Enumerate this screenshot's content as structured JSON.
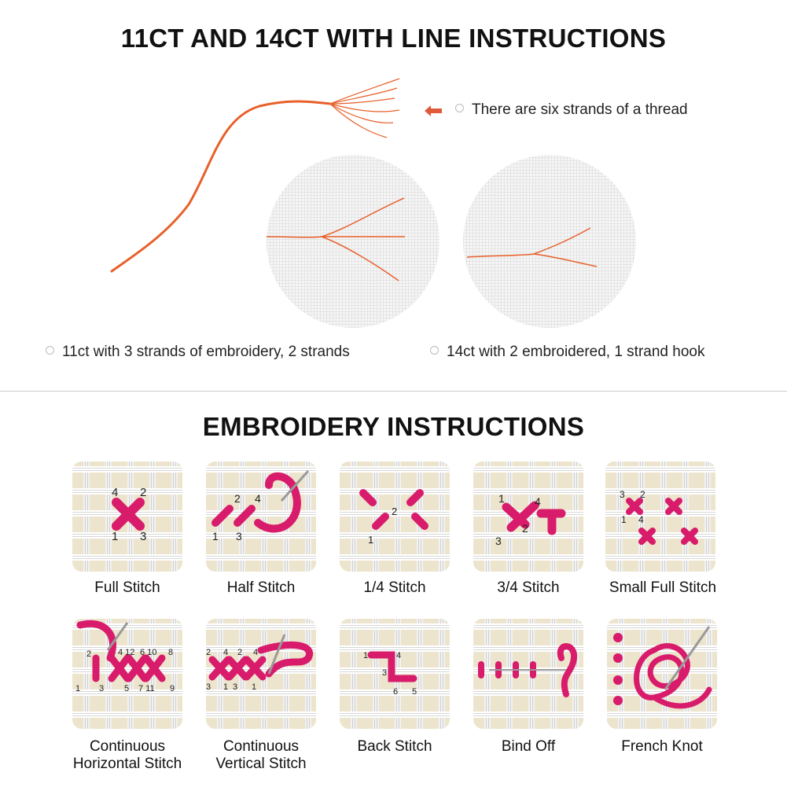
{
  "section1": {
    "title": "11CT AND 14CT WITH LINE INSTRUCTIONS",
    "thread_note": "There are six strands of a thread",
    "caption_11ct": "11ct with 3 strands of embroidery, 2 strands",
    "caption_14ct": "14ct with 2 embroidered, 1 strand hook"
  },
  "section2": {
    "title": "EMBROIDERY INSTRUCTIONS",
    "stitches": [
      {
        "label": "Full Stitch"
      },
      {
        "label": "Half Stitch"
      },
      {
        "label": "1/4 Stitch"
      },
      {
        "label": "3/4 Stitch"
      },
      {
        "label": "Small Full Stitch"
      },
      {
        "label": "Continuous Horizontal Stitch",
        "line1": "Continuous",
        "line2": "Horizontal Stitch"
      },
      {
        "label": "Continuous Vertical Stitch",
        "line1": "Continuous",
        "line2": "Vertical Stitch"
      },
      {
        "label": "Back Stitch"
      },
      {
        "label": "Bind Off"
      },
      {
        "label": "French Knot"
      }
    ]
  },
  "colors": {
    "thread": "#e8602a",
    "stitch": "#d81b6a",
    "arrow": "#e05a3a"
  }
}
